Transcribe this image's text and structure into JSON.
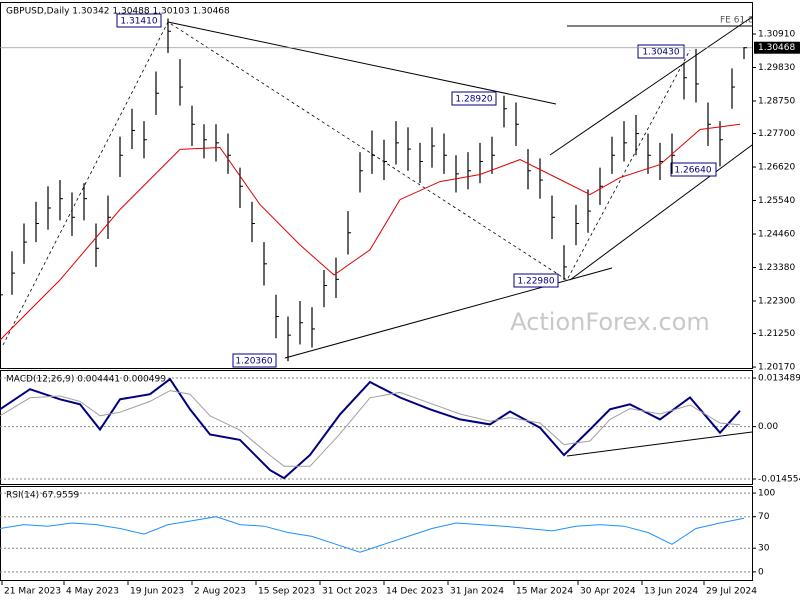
{
  "chart_data": [
    {
      "type": "ohlc",
      "title": "GBPUSD,Daily 1.30342 1.30488 1.30103 1.30468",
      "watermark": "ActionForex.com",
      "color": "#000000",
      "x": [
        0,
        6,
        12,
        18,
        24,
        30,
        36,
        42,
        48,
        54,
        60,
        66,
        72,
        78,
        84,
        90,
        96,
        102,
        108,
        114,
        120,
        126,
        132,
        138,
        144,
        150,
        156,
        162,
        168,
        174,
        180,
        186,
        192,
        198,
        204,
        210,
        216,
        222,
        228,
        234,
        240,
        246,
        252,
        258,
        264,
        270,
        276,
        282,
        288,
        294,
        300,
        306,
        312,
        318,
        324,
        330,
        336,
        342,
        348,
        354,
        360,
        366,
        372
      ],
      "high": [
        1.231,
        1.239,
        1.248,
        1.255,
        1.26,
        1.262,
        1.258,
        1.261,
        1.248,
        1.257,
        1.276,
        1.285,
        1.281,
        1.297,
        1.3141,
        1.301,
        1.286,
        1.28,
        1.28,
        1.277,
        1.266,
        1.255,
        1.242,
        1.225,
        1.218,
        1.223,
        1.221,
        1.233,
        1.237,
        1.252,
        1.271,
        1.278,
        1.275,
        1.281,
        1.279,
        1.274,
        1.279,
        1.277,
        1.27,
        1.271,
        1.274,
        1.276,
        1.2892,
        1.287,
        1.272,
        1.269,
        1.257,
        1.241,
        1.254,
        1.259,
        1.266,
        1.276,
        1.281,
        1.283,
        1.277,
        1.274,
        1.277,
        1.3,
        1.3043,
        1.287,
        1.281,
        1.298,
        1.30488
      ],
      "low": [
        1.218,
        1.225,
        1.235,
        1.242,
        1.246,
        1.249,
        1.244,
        1.249,
        1.234,
        1.243,
        1.263,
        1.272,
        1.269,
        1.283,
        1.303,
        1.286,
        1.273,
        1.269,
        1.268,
        1.264,
        1.253,
        1.242,
        1.228,
        1.211,
        1.2036,
        1.209,
        1.208,
        1.221,
        1.224,
        1.238,
        1.258,
        1.264,
        1.262,
        1.267,
        1.265,
        1.261,
        1.266,
        1.264,
        1.258,
        1.259,
        1.261,
        1.264,
        1.279,
        1.273,
        1.259,
        1.256,
        1.243,
        1.2298,
        1.241,
        1.245,
        1.254,
        1.264,
        1.268,
        1.27,
        1.264,
        1.262,
        1.264,
        1.288,
        1.287,
        1.273,
        1.2664,
        1.285,
        1.30103
      ],
      "close": [
        1.225,
        1.232,
        1.242,
        1.248,
        1.253,
        1.256,
        1.25,
        1.256,
        1.24,
        1.25,
        1.27,
        1.278,
        1.275,
        1.29,
        1.31,
        1.292,
        1.28,
        1.275,
        1.274,
        1.27,
        1.26,
        1.248,
        1.235,
        1.218,
        1.212,
        1.216,
        1.214,
        1.228,
        1.23,
        1.245,
        1.265,
        1.27,
        1.268,
        1.274,
        1.272,
        1.268,
        1.273,
        1.27,
        1.264,
        1.265,
        1.268,
        1.27,
        1.285,
        1.28,
        1.265,
        1.262,
        1.25,
        1.234,
        1.248,
        1.252,
        1.26,
        1.27,
        1.274,
        1.277,
        1.27,
        1.268,
        1.27,
        1.295,
        1.293,
        1.28,
        1.275,
        1.292,
        1.30468
      ],
      "moving_average": {
        "color": "#e00000",
        "x": [
          0,
          30,
          60,
          90,
          110,
          130,
          150,
          167,
          185,
          200,
          220,
          240,
          260,
          280,
          295,
          310,
          330,
          350,
          370
        ],
        "values": [
          1.2104,
          1.2298,
          1.2525,
          1.2719,
          1.2725,
          1.2541,
          1.2411,
          1.2314,
          1.2395,
          1.2557,
          1.2615,
          1.2638,
          1.2686,
          1.2622,
          1.2573,
          1.2628,
          1.267,
          1.2783,
          1.28
        ]
      },
      "last_price": {
        "value": 1.30468,
        "label": "1.30468"
      },
      "annotations": [
        "1.31410",
        "1.28920",
        "1.30430",
        "1.26640",
        "1.22980",
        "1.20360",
        "FE 61.8"
      ],
      "xlim": [
        0,
        376
      ],
      "xticks": [
        {
          "value": 1,
          "label": "21 Mar 2023"
        },
        {
          "value": 32,
          "label": "4 May 2023"
        },
        {
          "value": 64,
          "label": "19 Jun 2023"
        },
        {
          "value": 96,
          "label": "2 Aug 2023"
        },
        {
          "value": 128,
          "label": "15 Sep 2023"
        },
        {
          "value": 160,
          "label": "31 Oct 2023"
        },
        {
          "value": 192,
          "label": "14 Dec 2023"
        },
        {
          "value": 224,
          "label": "31 Jan 2024"
        },
        {
          "value": 257,
          "label": "15 Mar 2024"
        },
        {
          "value": 289,
          "label": "30 Apr 2024"
        },
        {
          "value": 321,
          "label": "13 Jun 2024"
        },
        {
          "value": 352,
          "label": "29 Jul 2024"
        }
      ],
      "ylim": [
        1.2014,
        1.3191
      ],
      "yticks": [
        {
          "value": 1.3091,
          "label": "1.30910"
        },
        {
          "value": 1.2983,
          "label": "1.29830"
        },
        {
          "value": 1.2875,
          "label": "1.28750"
        },
        {
          "value": 1.277,
          "label": "1.27700"
        },
        {
          "value": 1.2662,
          "label": "1.26620"
        },
        {
          "value": 1.2554,
          "label": "1.25540"
        },
        {
          "value": 1.2446,
          "label": "1.24460"
        },
        {
          "value": 1.2338,
          "label": "1.23380"
        },
        {
          "value": 1.223,
          "label": "1.22300"
        },
        {
          "value": 1.2125,
          "label": "1.21250"
        },
        {
          "value": 1.2017,
          "label": "1.20170"
        }
      ]
    },
    {
      "type": "line",
      "title": "MACD(12,26,9) 0.004441 0.000499",
      "x": [
        0,
        15,
        30,
        40,
        50,
        60,
        75,
        85,
        95,
        105,
        120,
        135,
        142,
        155,
        170,
        185,
        200,
        215,
        230,
        245,
        255,
        270,
        282,
        295,
        305,
        315,
        330,
        345,
        360,
        370
      ],
      "series": [
        {
          "color": "#000080",
          "values": [
            0.0048,
            0.0104,
            0.0076,
            0.0062,
            -0.0008,
            0.0076,
            0.009,
            0.0132,
            0.0048,
            -0.0022,
            -0.0037,
            -0.0121,
            -0.0143,
            -0.0079,
            0.0034,
            0.0124,
            0.0081,
            0.0048,
            0.002,
            0.0006,
            0.0042,
            -0.0003,
            -0.0079,
            -0.0008,
            0.0048,
            0.0062,
            0.002,
            0.0081,
            -0.0017,
            0.0044
          ]
        },
        {
          "color": "#a0a0a0",
          "values": [
            0.003,
            0.008,
            0.0085,
            0.007,
            0.003,
            0.004,
            0.007,
            0.01,
            0.009,
            0.003,
            -0.001,
            -0.008,
            -0.011,
            -0.011,
            -0.002,
            0.008,
            0.0095,
            0.0065,
            0.0035,
            0.0015,
            0.0025,
            0.001,
            -0.005,
            -0.004,
            0.002,
            0.005,
            0.0035,
            0.006,
            0.001,
            0.0005
          ]
        }
      ],
      "xlim": [
        0,
        376
      ],
      "ylim": [
        -0.01595,
        0.01545
      ],
      "yticks": [
        0.013489,
        {
          "value": 0,
          "label": "0.00"
        },
        -0.014554
      ]
    },
    {
      "type": "line",
      "title": "RSI(14) 67.9559",
      "x": [
        0,
        12,
        24,
        36,
        48,
        60,
        72,
        84,
        96,
        108,
        120,
        132,
        144,
        156,
        168,
        180,
        192,
        204,
        216,
        228,
        240,
        252,
        264,
        276,
        288,
        300,
        312,
        324,
        336,
        348,
        360,
        372
      ],
      "series": [
        {
          "color": "#1e90ff",
          "values": [
            55,
            60,
            58,
            62,
            60,
            55,
            48,
            60,
            65,
            70,
            60,
            58,
            50,
            45,
            35,
            25,
            35,
            45,
            55,
            62,
            60,
            58,
            55,
            52,
            58,
            60,
            58,
            50,
            35,
            55,
            62,
            68
          ]
        }
      ],
      "xlim": [
        0,
        376
      ],
      "ylim": [
        -10.3,
        107.7
      ],
      "yticks": [
        100,
        70,
        30,
        0
      ]
    }
  ]
}
